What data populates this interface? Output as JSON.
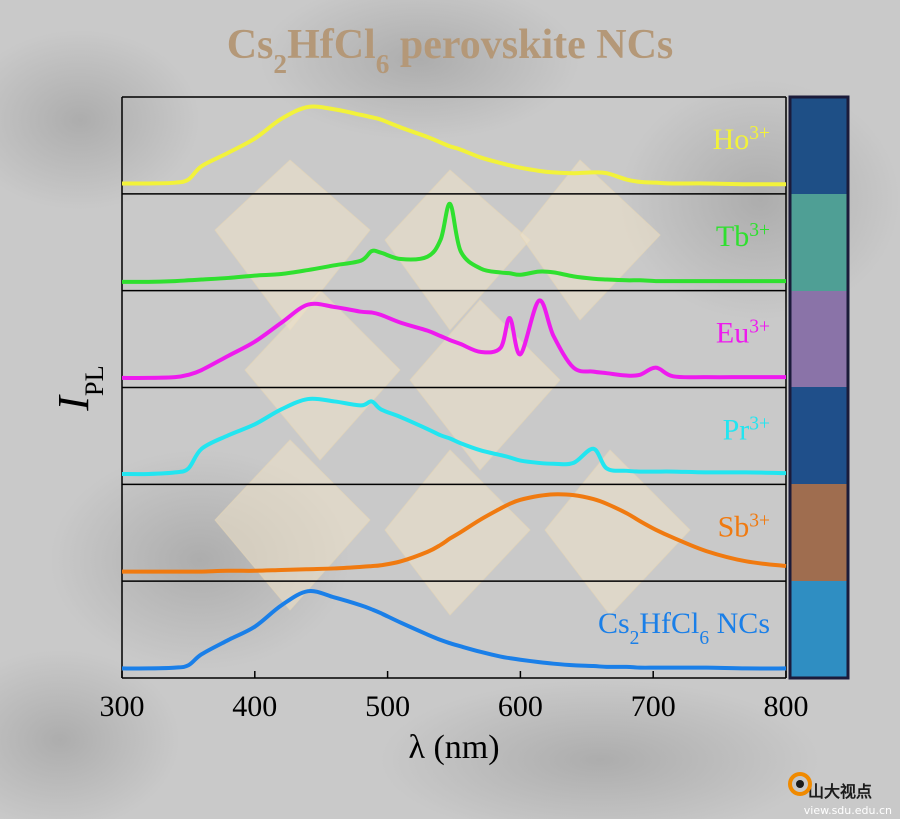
{
  "chart_data": {
    "type": "line",
    "title": "Cs2HfCl6 perovskite NCs",
    "x_label": "λ (nm)",
    "y_label": "IPL",
    "xlim": [
      300,
      800
    ],
    "xticks": [
      300,
      400,
      500,
      600,
      700,
      800
    ],
    "ylim": [
      0,
      1
    ],
    "x": [
      300,
      320,
      340,
      350,
      360,
      380,
      400,
      420,
      440,
      460,
      480,
      488,
      495,
      510,
      530,
      540,
      547,
      555,
      570,
      585,
      592,
      600,
      614,
      625,
      640,
      655,
      665,
      680,
      690,
      702,
      715,
      740,
      770,
      800
    ],
    "series": [
      {
        "name": "Ho3+",
        "color": "#f2f23a",
        "values": [
          0.03,
          0.03,
          0.04,
          0.08,
          0.25,
          0.42,
          0.6,
          0.85,
          1,
          0.97,
          0.9,
          0.87,
          0.84,
          0.74,
          0.62,
          0.55,
          0.5,
          0.46,
          0.36,
          0.29,
          0.26,
          0.23,
          0.19,
          0.17,
          0.16,
          0.17,
          0.16,
          0.08,
          0.05,
          0.04,
          0.03,
          0.03,
          0.02,
          0.02
        ]
      },
      {
        "name": "Tb3+",
        "color": "#2fe02f",
        "values": [
          0.01,
          0.01,
          0.02,
          0.03,
          0.04,
          0.06,
          0.09,
          0.11,
          0.16,
          0.22,
          0.28,
          0.4,
          0.38,
          0.3,
          0.33,
          0.55,
          1,
          0.4,
          0.18,
          0.13,
          0.12,
          0.1,
          0.14,
          0.13,
          0.08,
          0.05,
          0.04,
          0.03,
          0.03,
          0.02,
          0.02,
          0.02,
          0.02,
          0.02
        ]
      },
      {
        "name": "Eu3+",
        "color": "#ee1aee",
        "values": [
          0.02,
          0.02,
          0.03,
          0.06,
          0.12,
          0.3,
          0.48,
          0.72,
          0.95,
          0.92,
          0.86,
          0.85,
          0.82,
          0.72,
          0.62,
          0.55,
          0.5,
          0.45,
          0.35,
          0.4,
          0.78,
          0.32,
          1,
          0.55,
          0.15,
          0.1,
          0.08,
          0.05,
          0.06,
          0.15,
          0.04,
          0.03,
          0.03,
          0.03
        ]
      },
      {
        "name": "Pr3+",
        "color": "#22e5f0",
        "values": [
          0.03,
          0.03,
          0.05,
          0.1,
          0.35,
          0.52,
          0.66,
          0.85,
          0.98,
          0.95,
          0.9,
          0.95,
          0.85,
          0.75,
          0.6,
          0.52,
          0.48,
          0.42,
          0.33,
          0.27,
          0.24,
          0.2,
          0.17,
          0.16,
          0.17,
          0.35,
          0.1,
          0.07,
          0.06,
          0.06,
          0.06,
          0.05,
          0.05,
          0.04
        ]
      },
      {
        "name": "Sb3+",
        "color": "#f07a10",
        "values": [
          0.02,
          0.02,
          0.02,
          0.02,
          0.02,
          0.03,
          0.03,
          0.04,
          0.05,
          0.06,
          0.08,
          0.09,
          0.1,
          0.15,
          0.27,
          0.36,
          0.44,
          0.52,
          0.68,
          0.82,
          0.88,
          0.93,
          0.98,
          1,
          0.99,
          0.94,
          0.88,
          0.76,
          0.66,
          0.55,
          0.45,
          0.28,
          0.15,
          0.09
        ]
      },
      {
        "name": "Cs2HfCl6 NCs",
        "color": "#1a7fe8",
        "values": [
          0.02,
          0.02,
          0.03,
          0.06,
          0.2,
          0.38,
          0.55,
          0.82,
          1,
          0.92,
          0.82,
          0.77,
          0.72,
          0.6,
          0.45,
          0.38,
          0.34,
          0.3,
          0.23,
          0.17,
          0.15,
          0.13,
          0.1,
          0.08,
          0.06,
          0.05,
          0.04,
          0.04,
          0.03,
          0.03,
          0.03,
          0.03,
          0.02,
          0.02
        ]
      }
    ]
  },
  "watermark": {
    "name": "山大视点",
    "url": "view.sdu.edu.cn"
  }
}
